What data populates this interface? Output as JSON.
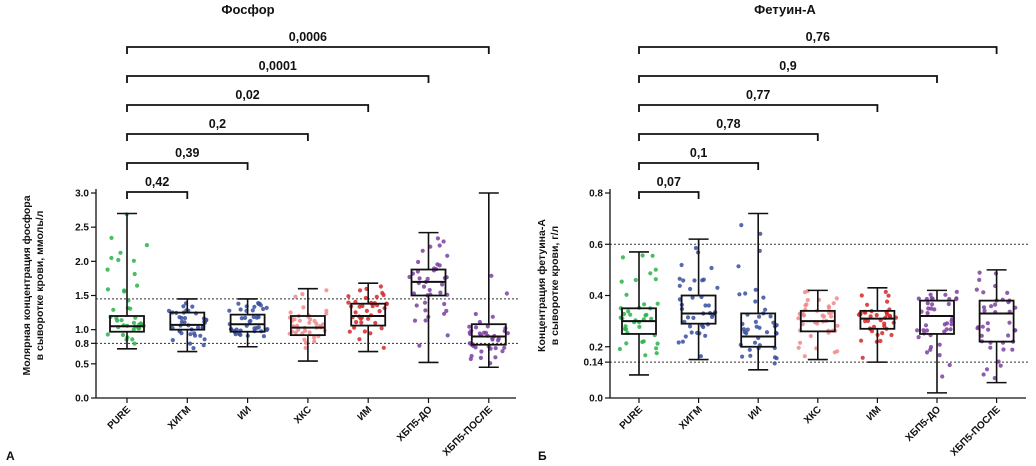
{
  "panel_labels": [
    "А",
    "Б"
  ],
  "chart_data": [
    {
      "type": "box",
      "title": "Фосфор",
      "ylabel_line1": "Молярная концентрация фосфора",
      "ylabel_line2": "в сыворотке крови, ммоль/л",
      "ylim": [
        0,
        3.0
      ],
      "yticks": [
        "0.0",
        "0.5",
        "0.8",
        "1.0",
        "1.5",
        "2.0",
        "2.5",
        "3.0"
      ],
      "ytick_values": [
        0.0,
        0.5,
        0.8,
        1.0,
        1.5,
        2.0,
        2.5,
        3.0
      ],
      "reference_lines": [
        {
          "value": 0.8,
          "label": "0.8"
        },
        {
          "value": 1.45,
          "label": "1.45"
        }
      ],
      "categories": [
        "PURE",
        "ХИГМ",
        "ИИ",
        "ХКС",
        "ИМ",
        "ХБП5-ДО",
        "ХБП5-ПОСЛЕ"
      ],
      "colors": [
        "#2ab24a",
        "#3a4fa0",
        "#3a4fa0",
        "#f08a8a",
        "#d62728",
        "#7b3fa0",
        "#7b3fa0"
      ],
      "boxes": [
        {
          "min": 0.72,
          "q1": 0.97,
          "median": 1.05,
          "q3": 1.2,
          "max": 2.7
        },
        {
          "min": 0.68,
          "q1": 1.0,
          "median": 1.07,
          "q3": 1.25,
          "max": 1.45
        },
        {
          "min": 0.75,
          "q1": 0.97,
          "median": 1.08,
          "q3": 1.22,
          "max": 1.45
        },
        {
          "min": 0.54,
          "q1": 0.92,
          "median": 1.03,
          "q3": 1.2,
          "max": 1.6
        },
        {
          "min": 0.68,
          "q1": 1.06,
          "median": 1.2,
          "q3": 1.38,
          "max": 1.68
        },
        {
          "min": 0.52,
          "q1": 1.5,
          "median": 1.7,
          "q3": 1.88,
          "max": 2.42
        },
        {
          "min": 0.45,
          "q1": 0.78,
          "median": 0.9,
          "q3": 1.08,
          "max": 3.0
        }
      ],
      "comparisons": [
        {
          "from": "PURE",
          "to": "ХИГМ",
          "p": "0,42"
        },
        {
          "from": "PURE",
          "to": "ИИ",
          "p": "0,39"
        },
        {
          "from": "PURE",
          "to": "ХКС",
          "p": "0,2"
        },
        {
          "from": "PURE",
          "to": "ИМ",
          "p": "0,02"
        },
        {
          "from": "PURE",
          "to": "ХБП5-ДО",
          "p": "0,0001"
        },
        {
          "from": "PURE",
          "to": "ХБП5-ПОСЛЕ",
          "p": "0,0006"
        }
      ]
    },
    {
      "type": "box",
      "title": "Фетуин-А",
      "ylabel_line1": "Концентрация фетуина-А",
      "ylabel_line2": "в сыворотке крови, г/л",
      "ylim": [
        0,
        0.8
      ],
      "yticks": [
        "0.0",
        "0.14",
        "0.2",
        "0.4",
        "0.6",
        "0.8"
      ],
      "ytick_values": [
        0.0,
        0.14,
        0.2,
        0.4,
        0.6,
        0.8
      ],
      "reference_lines": [
        {
          "value": 0.14,
          "label": "0.14"
        },
        {
          "value": 0.6,
          "label": "0.6"
        }
      ],
      "categories": [
        "PURE",
        "ХИГМ",
        "ИИ",
        "ХКС",
        "ИМ",
        "ХБП5-ДО",
        "ХБП5-ПОСЛЕ"
      ],
      "colors": [
        "#2ab24a",
        "#3a4fa0",
        "#3a4fa0",
        "#f08a8a",
        "#d62728",
        "#7b3fa0",
        "#7b3fa0"
      ],
      "boxes": [
        {
          "min": 0.09,
          "q1": 0.25,
          "median": 0.3,
          "q3": 0.35,
          "max": 0.57
        },
        {
          "min": 0.15,
          "q1": 0.29,
          "median": 0.33,
          "q3": 0.4,
          "max": 0.62
        },
        {
          "min": 0.11,
          "q1": 0.2,
          "median": 0.24,
          "q3": 0.33,
          "max": 0.72
        },
        {
          "min": 0.15,
          "q1": 0.26,
          "median": 0.3,
          "q3": 0.34,
          "max": 0.42
        },
        {
          "min": 0.14,
          "q1": 0.27,
          "median": 0.31,
          "q3": 0.34,
          "max": 0.43
        },
        {
          "min": 0.02,
          "q1": 0.25,
          "median": 0.32,
          "q3": 0.38,
          "max": 0.42
        },
        {
          "min": 0.06,
          "q1": 0.22,
          "median": 0.33,
          "q3": 0.38,
          "max": 0.5
        }
      ],
      "comparisons": [
        {
          "from": "PURE",
          "to": "ХИГМ",
          "p": "0,07"
        },
        {
          "from": "PURE",
          "to": "ИИ",
          "p": "0,1"
        },
        {
          "from": "PURE",
          "to": "ХКС",
          "p": "0,78"
        },
        {
          "from": "PURE",
          "to": "ИМ",
          "p": "0,77"
        },
        {
          "from": "PURE",
          "to": "ХБП5-ДО",
          "p": "0,9"
        },
        {
          "from": "PURE",
          "to": "ХБП5-ПОСЛЕ",
          "p": "0,76"
        }
      ]
    }
  ]
}
